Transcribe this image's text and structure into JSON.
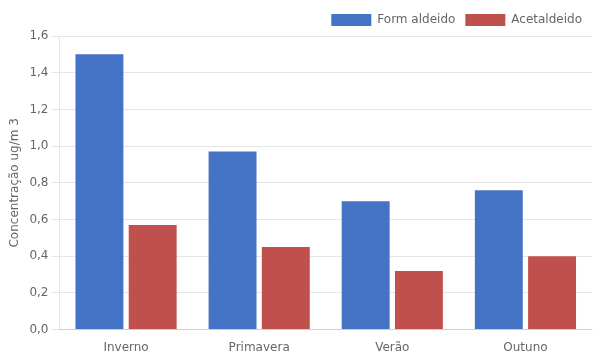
{
  "chart_data": {
    "type": "bar",
    "categories": [
      "Inverno",
      "Primavera",
      "Verão",
      "Outuno"
    ],
    "series": [
      {
        "name": "Form aldeido",
        "color": "#4472C4",
        "values": [
          1.5,
          0.97,
          0.7,
          0.76
        ]
      },
      {
        "name": "Acetaldeido",
        "color": "#C0504D",
        "values": [
          0.57,
          0.45,
          0.32,
          0.4
        ]
      }
    ],
    "ylabel": "Concentração ug/m 3",
    "ylim": [
      0.0,
      1.6
    ],
    "yticks": [
      {
        "value": 0.0,
        "label": "0,0"
      },
      {
        "value": 0.2,
        "label": "0,2"
      },
      {
        "value": 0.4,
        "label": "0,4"
      },
      {
        "value": 0.6,
        "label": "0,6"
      },
      {
        "value": 0.8,
        "label": "0,8"
      },
      {
        "value": 1.0,
        "label": "1,0"
      },
      {
        "value": 1.2,
        "label": "1,2"
      },
      {
        "value": 1.4,
        "label": "1,4"
      },
      {
        "value": 1.6,
        "label": "1,6"
      }
    ],
    "grid": true,
    "legend": "top-right"
  }
}
